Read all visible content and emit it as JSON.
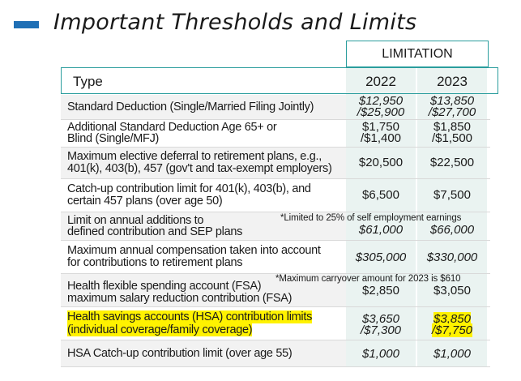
{
  "title": "Important Thresholds and Limits",
  "limitation_header": "LIMITATION",
  "columns": {
    "type": "Type",
    "y1": "2022",
    "y2": "2023"
  },
  "colors": {
    "accent": "#1f6fb5",
    "teal_border": "#2a9d9d",
    "highlight": "#fff200"
  },
  "rows": [
    {
      "l1": "Standard Deduction (Single/Married Filing Jointly)",
      "l2": "",
      "v1a": "$12,950",
      "v1b": "/$25,900",
      "v2a": "$13,850",
      "v2b": "/$27,700"
    },
    {
      "l1": "Additional Standard Deduction Age 65+ or",
      "l2": "Blind (Single/MFJ)",
      "v1a": "$1,750",
      "v1b": "/$1,400",
      "v2a": "$1,850",
      "v2b": "/$1,500"
    },
    {
      "l1": "Maximum elective deferral to retirement plans, e.g.,",
      "l2": "401(k), 403(b), 457 (gov't and tax-exempt employers)",
      "v1": "$20,500",
      "v2": "$22,500"
    },
    {
      "l1": "Catch-up contribution limit for 401(k), 403(b), and",
      "l2": "certain 457 plans (over age 50)",
      "v1": "$6,500",
      "v2": "$7,500"
    },
    {
      "l1": "Limit on annual additions to",
      "l2": "defined contribution and SEP plans",
      "v1": "$61,000",
      "v2": "$66,000",
      "note": "*Limited to 25% of self employment earnings"
    },
    {
      "l1": "Maximum annual compensation taken into account",
      "l2": "for contributions to retirement plans",
      "v1": "$305,000",
      "v2": "$330,000"
    },
    {
      "l1": "Health flexible spending account (FSA)",
      "l2": "maximum salary reduction contribution (FSA)",
      "v1": "$2,850",
      "v2": "$3,050",
      "note": "*Maximum carryover amount for 2023 is $610"
    },
    {
      "l1": "Health savings accounts (HSA) contribution limits",
      "l2": "(individual coverage/family coverage)",
      "v1a": "$3,650",
      "v1b": "/$7,300",
      "v2a": "$3,850",
      "v2b": "/$7,750"
    },
    {
      "l1": "HSA Catch-up contribution limit (over age 55)",
      "l2": "",
      "v1": "$1,000",
      "v2": "$1,000"
    }
  ]
}
